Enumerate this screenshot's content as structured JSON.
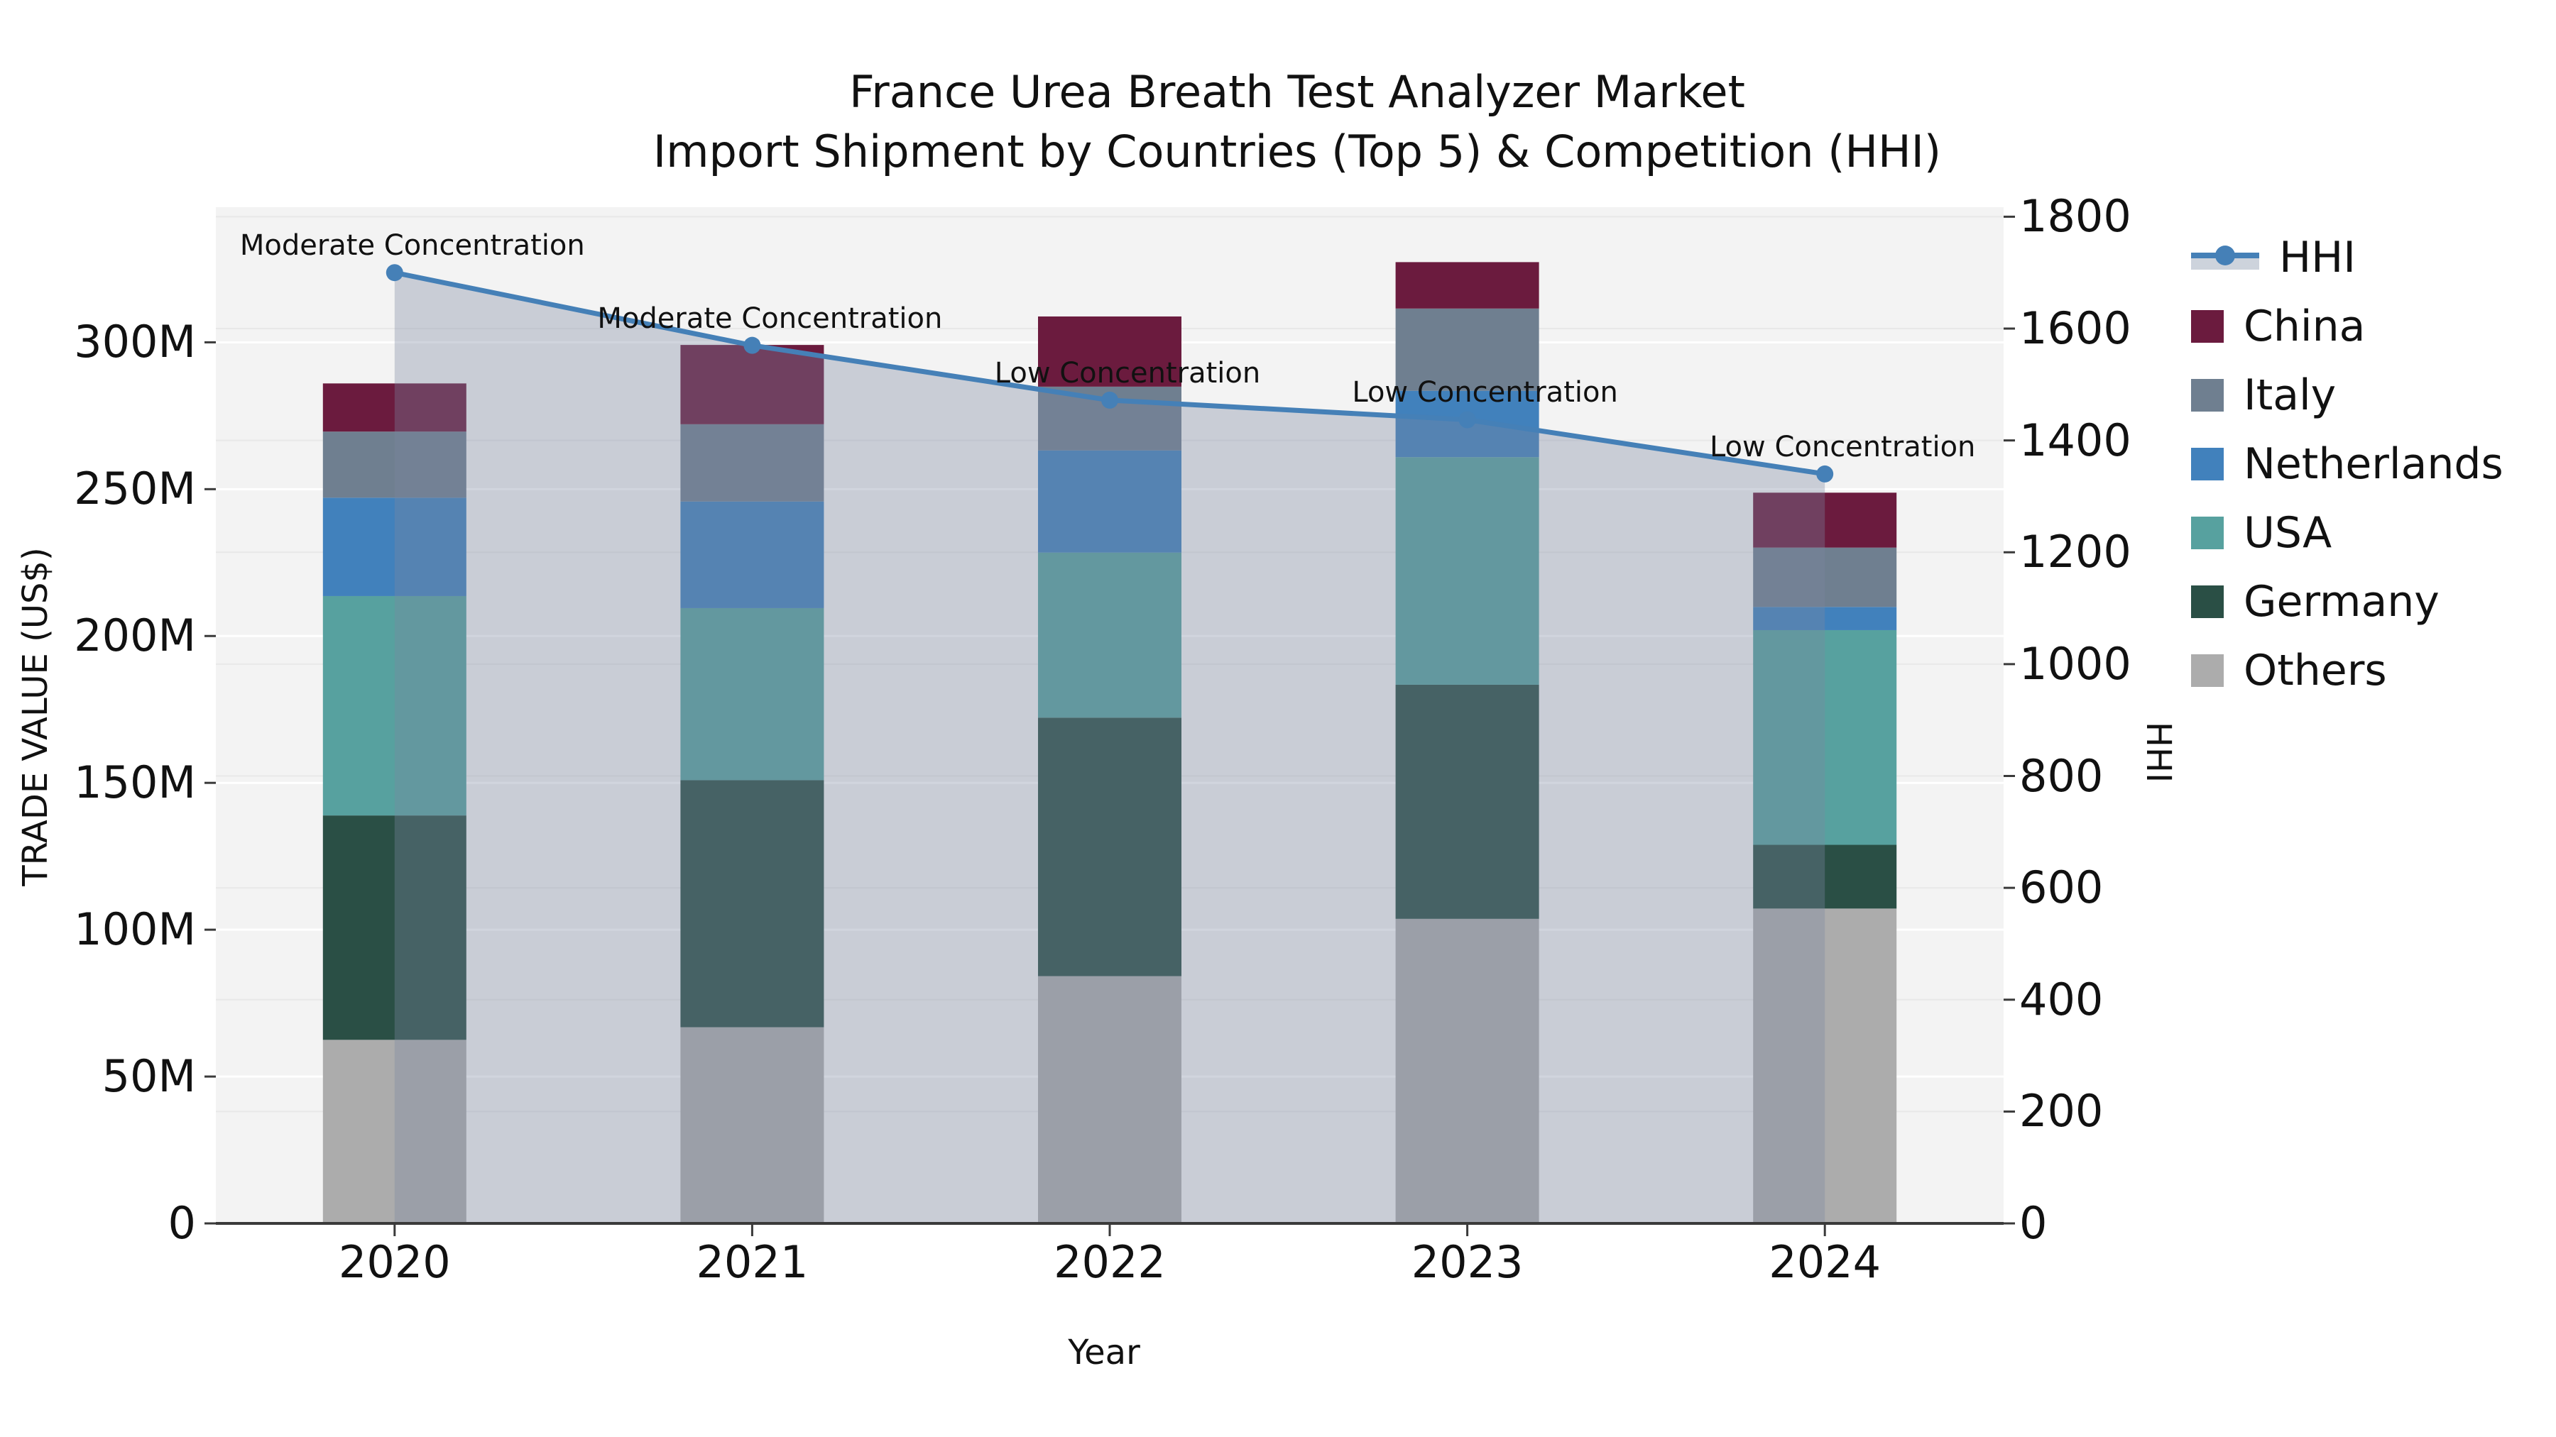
{
  "title": {
    "line1": "France Urea Breath Test Analyzer Market",
    "line2": "Import Shipment by Countries (Top 5) & Competition (HHI)"
  },
  "axes": {
    "x_label": "Year",
    "y_left_label": "TRADE VALUE (US$)",
    "y_right_label": "HHI",
    "x_tick_labels": [
      "2020",
      "2021",
      "2022",
      "2023",
      "2024"
    ],
    "y_left_tick_labels": [
      "0",
      "50M",
      "100M",
      "150M",
      "200M",
      "250M",
      "300M"
    ],
    "y_left_tick_values": [
      0,
      50,
      100,
      150,
      200,
      250,
      300
    ],
    "y_right_tick_labels": [
      "0",
      "200",
      "400",
      "600",
      "800",
      "1000",
      "1200",
      "1400",
      "1600",
      "1800"
    ],
    "y_right_tick_values": [
      0,
      200,
      400,
      600,
      800,
      1000,
      1200,
      1400,
      1600,
      1800
    ]
  },
  "legend": {
    "position": "right",
    "entries": [
      {
        "label": "HHI",
        "kind": "line",
        "color": "#4580B7",
        "band_color": "#CDD3DC"
      },
      {
        "label": "China",
        "kind": "square",
        "color": "#6B1B3E"
      },
      {
        "label": "Italy",
        "kind": "square",
        "color": "#6F7F90"
      },
      {
        "label": "Netherlands",
        "kind": "square",
        "color": "#4181BC"
      },
      {
        "label": "USA",
        "kind": "square",
        "color": "#57A19F"
      },
      {
        "label": "Germany",
        "kind": "square",
        "color": "#2A4F45"
      },
      {
        "label": "Others",
        "kind": "square",
        "color": "#ACACAC"
      }
    ]
  },
  "chart_data": {
    "type": "stacked-bar+line",
    "categories": [
      "2020",
      "2021",
      "2022",
      "2023",
      "2024"
    ],
    "value_unit": "Million US$",
    "stack_order_bottom_to_top": [
      "Others",
      "Germany",
      "USA",
      "Netherlands",
      "Italy",
      "China"
    ],
    "series": [
      {
        "name": "Others",
        "color": "#ACACAC",
        "values": [
          62.5,
          66.8,
          84.2,
          103.7,
          107.2
        ]
      },
      {
        "name": "Germany",
        "color": "#2A4F45",
        "values": [
          76.4,
          84.1,
          88.0,
          79.7,
          21.7
        ]
      },
      {
        "name": "USA",
        "color": "#57A19F",
        "values": [
          74.7,
          58.6,
          56.2,
          77.5,
          73.1
        ]
      },
      {
        "name": "Netherlands",
        "color": "#4181BC",
        "values": [
          33.5,
          36.3,
          34.8,
          22.6,
          7.9
        ]
      },
      {
        "name": "Italy",
        "color": "#6F7F90",
        "values": [
          22.5,
          26.3,
          21.7,
          28.0,
          20.2
        ]
      },
      {
        "name": "China",
        "color": "#6B1B3E",
        "values": [
          16.4,
          27.0,
          23.9,
          15.8,
          18.7
        ]
      }
    ],
    "totals": [
      286.0,
      299.1,
      308.8,
      327.3,
      248.8
    ],
    "line_series": {
      "name": "HHI",
      "axis": "right",
      "color": "#4580B7",
      "area_fill_color": "#7B86A0",
      "area_fill_opacity": 0.35,
      "values": [
        1700,
        1570,
        1472,
        1437,
        1340
      ]
    },
    "annotations": [
      {
        "category": "2020",
        "text": "Moderate Concentration"
      },
      {
        "category": "2021",
        "text": "Moderate Concentration"
      },
      {
        "category": "2022",
        "text": "Low Concentration"
      },
      {
        "category": "2023",
        "text": "Low Concentration"
      },
      {
        "category": "2024",
        "text": "Low Concentration"
      }
    ],
    "xlabel": "Year",
    "ylabel_left": "TRADE VALUE (US$)",
    "ylabel_right": "HHI",
    "ylim_left": [
      0,
      346
    ],
    "ylim_right": [
      0,
      1817
    ],
    "grid": true,
    "plot_background": "#F3F3F3",
    "gridline_color_major": "#FFFFFF",
    "gridline_color_secondary": "#E8E8E8",
    "legend_position": "right"
  }
}
